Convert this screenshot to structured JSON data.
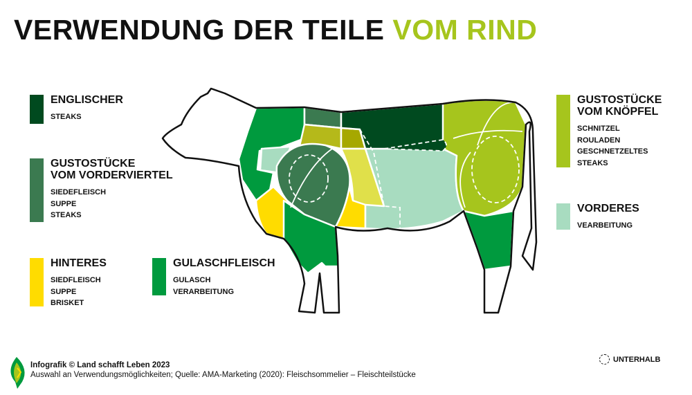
{
  "title": {
    "main": "VERWENDUNG DER TEILE",
    "accent": "VOM RIND"
  },
  "colors": {
    "englischer": "#004a1f",
    "vorderviertel": "#3b7a50",
    "gulasch": "#009a3e",
    "knoepfel": "#a6c51d",
    "hinteres": "#ffdc00",
    "vorderes": "#a8dcc0"
  },
  "legend": [
    {
      "id": "englischer",
      "title": [
        "ENGLISCHER"
      ],
      "items": [
        "STEAKS"
      ]
    },
    {
      "id": "vorderviertel",
      "title": [
        "GUSTOSTÜCKE",
        "VOM VORDERVIERTEL"
      ],
      "items": [
        "SIEDEFLEISCH",
        "SUPPE",
        "STEAKS"
      ]
    },
    {
      "id": "hinteres",
      "title": [
        "HINTERES"
      ],
      "items": [
        "SIEDFLEISCH",
        "SUPPE",
        "BRISKET"
      ]
    },
    {
      "id": "gulasch",
      "title": [
        "GULASCHFLEISCH"
      ],
      "items": [
        "GULASCH",
        "VERARBEITUNG"
      ]
    },
    {
      "id": "knoepfel",
      "title": [
        "GUSTOSTÜCKE",
        "VOM KNÖPFEL"
      ],
      "items": [
        "SCHNITZEL",
        "ROULADEN",
        "GESCHNETZELTES",
        "STEAKS"
      ]
    },
    {
      "id": "vorderes",
      "title": [
        "VORDERES"
      ],
      "items": [
        "VEARBEITUNG"
      ]
    }
  ],
  "footer": {
    "credit": "Infografik © Land schafft Leben 2023",
    "source": "Auswahl an Verwendungsmöglichkeiten; Quelle: AMA-Marketing (2020): Fleischsommelier – Fleischteilstücke"
  },
  "unterhalb": "UNTERHALB"
}
